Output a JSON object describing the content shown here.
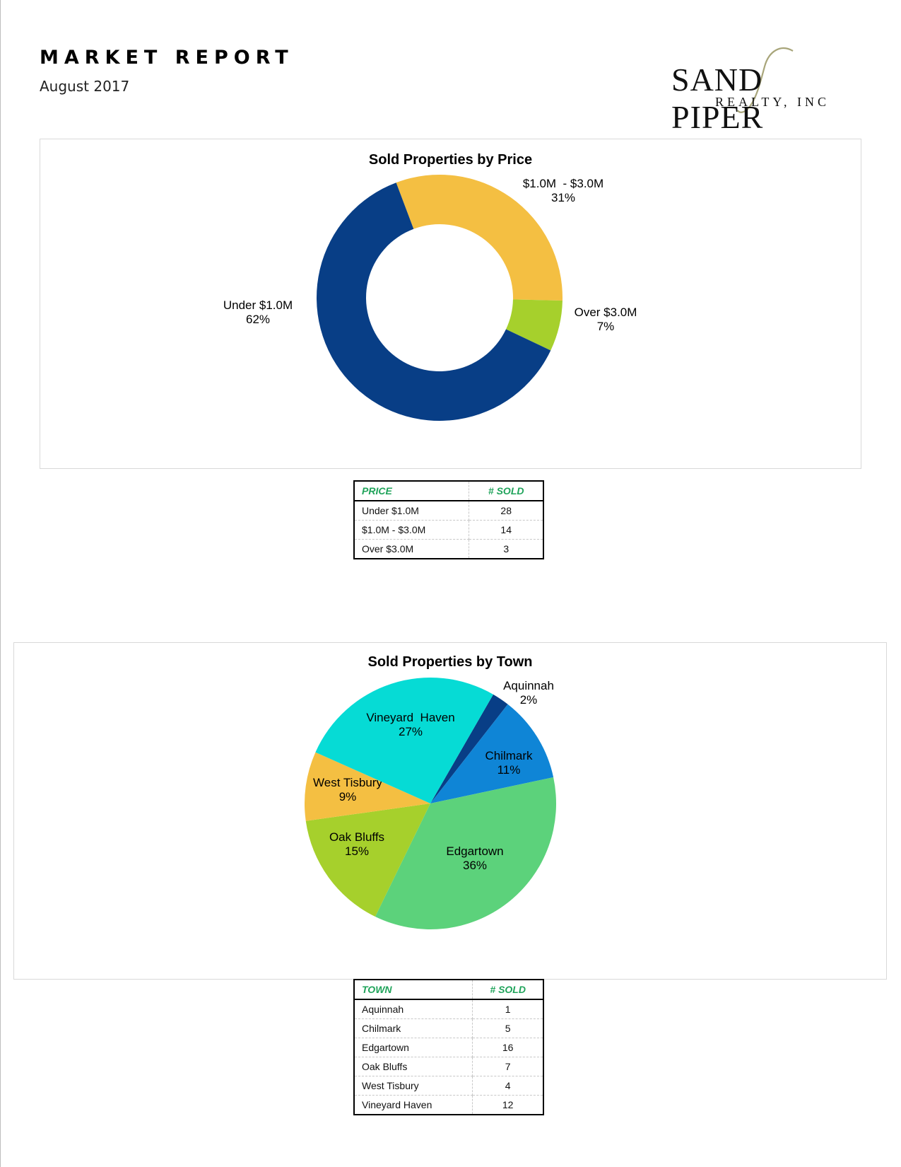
{
  "header": {
    "title": "MARKET REPORT",
    "subtitle": "August 2017"
  },
  "logo": {
    "main": "SAND PIPER",
    "sub": "REALTY, INC"
  },
  "colors": {
    "navy": "#083e86",
    "gold": "#f4bf42",
    "lime": "#a6d02c",
    "cyan": "#06dbd5",
    "blue": "#0f85d6",
    "green": "#5cd27b",
    "table_header": "#1fa35a"
  },
  "chart_data": [
    {
      "type": "pie",
      "donut": true,
      "title": "Sold Properties by Price",
      "slices": [
        {
          "label": "$1.0M  - $3.0M",
          "percent": "31%",
          "value": 14,
          "color": "#f4bf42"
        },
        {
          "label": "Over $3.0M",
          "percent": "7%",
          "value": 3,
          "color": "#a6d02c"
        },
        {
          "label": "Under $1.0M",
          "percent": "62%",
          "value": 28,
          "color": "#083e86"
        }
      ]
    },
    {
      "type": "pie",
      "donut": false,
      "title": "Sold Properties by Town",
      "slices": [
        {
          "label": "Aquinnah",
          "percent": "2%",
          "value": 1,
          "color": "#083e86"
        },
        {
          "label": "Chilmark",
          "percent": "11%",
          "value": 5,
          "color": "#0f85d6"
        },
        {
          "label": "Edgartown",
          "percent": "36%",
          "value": 16,
          "color": "#5cd27b"
        },
        {
          "label": "Oak Bluffs",
          "percent": "15%",
          "value": 7,
          "color": "#a6d02c"
        },
        {
          "label": "West Tisbury",
          "percent": "9%",
          "value": 4,
          "color": "#f4bf42"
        },
        {
          "label": "Vineyard  Haven",
          "percent": "27%",
          "value": 12,
          "color": "#06dbd5"
        }
      ]
    }
  ],
  "price_table": {
    "headers": [
      "PRICE",
      "# SOLD"
    ],
    "rows": [
      [
        "Under $1.0M",
        "28"
      ],
      [
        "$1.0M - $3.0M",
        "14"
      ],
      [
        "Over $3.0M",
        "3"
      ]
    ]
  },
  "town_table": {
    "headers": [
      "TOWN",
      "# SOLD"
    ],
    "rows": [
      [
        "Aquinnah",
        "1"
      ],
      [
        "Chilmark",
        "5"
      ],
      [
        "Edgartown",
        "16"
      ],
      [
        "Oak Bluffs",
        "7"
      ],
      [
        "West Tisbury",
        "4"
      ],
      [
        "Vineyard Haven",
        "12"
      ]
    ]
  }
}
